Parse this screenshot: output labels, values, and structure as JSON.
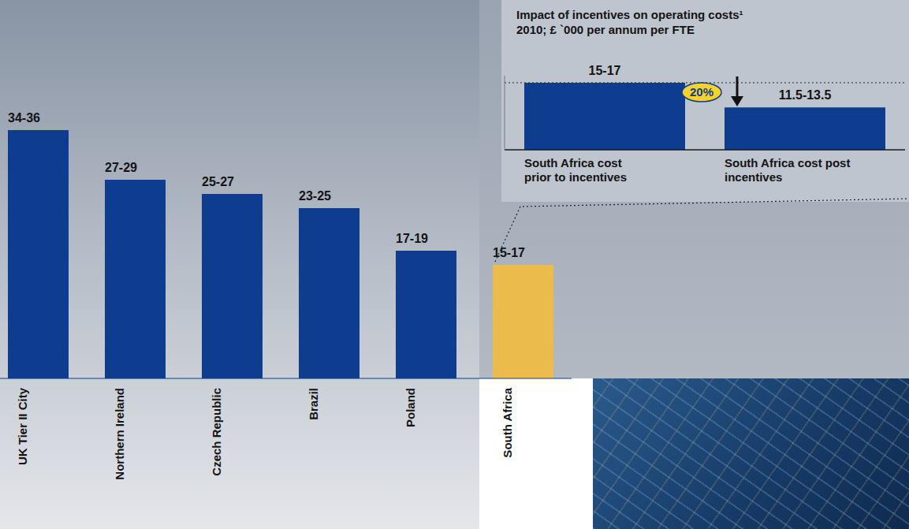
{
  "chart_data": [
    {
      "type": "bar",
      "categories": [
        "UK Tier II City",
        "Northern Ireland",
        "Czech Republic",
        "Brazil",
        "Poland",
        "South Africa"
      ],
      "values": [
        35,
        28,
        26,
        24,
        18,
        16
      ],
      "value_labels": [
        "34-36",
        "27-29",
        "25-27",
        "23-25",
        "17-19",
        "15-17"
      ],
      "colors": [
        "#0e3d8f",
        "#0e3d8f",
        "#0e3d8f",
        "#0e3d8f",
        "#0e3d8f",
        "#ebbb4c"
      ],
      "ylim": [
        0,
        36
      ],
      "yticks": [],
      "tick_labels": "x",
      "data_labels": true
    },
    {
      "type": "bar",
      "title": "Impact of incentives on operating costs¹",
      "subtitle": "2010; £ `000 per annum per FTE",
      "categories": [
        "South Africa cost prior to incentives",
        "South Africa cost post incentives"
      ],
      "values": [
        16,
        12.5
      ],
      "value_labels": [
        "15-17",
        "11.5-13.5"
      ],
      "color": "#0e3d8f",
      "ylim": [
        6.5,
        17
      ],
      "yticks": [],
      "tick_labels": "x",
      "data_labels": true,
      "annotations": [
        "20%"
      ]
    }
  ]
}
